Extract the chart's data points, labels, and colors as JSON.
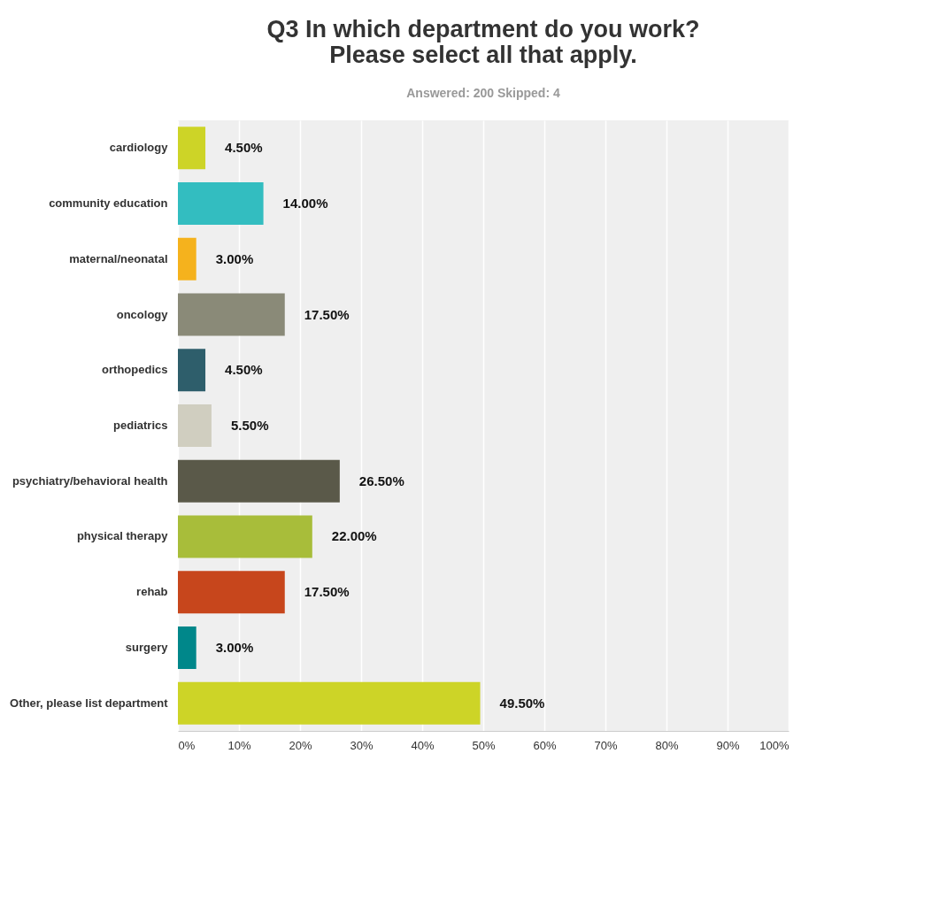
{
  "chart_data": {
    "type": "bar",
    "orientation": "horizontal",
    "title": "Q3 In which department do you work?\nPlease select all that apply.",
    "subtitle": "Answered: 200    Skipped: 4",
    "categories": [
      "cardiology",
      "community education",
      "maternal/neonatal",
      "oncology",
      "orthopedics",
      "pediatrics",
      "psychiatry/behavioral health",
      "physical therapy",
      "rehab",
      "surgery",
      "Other, please list department"
    ],
    "values": [
      4.5,
      14.0,
      3.0,
      17.5,
      4.5,
      5.5,
      26.5,
      22.0,
      17.5,
      3.0,
      49.5
    ],
    "colors": [
      "#cdd427",
      "#33bdc0",
      "#f5b21d",
      "#8a8a78",
      "#2e5e6b",
      "#d0cec0",
      "#5a5949",
      "#a8bd3a",
      "#c7461c",
      "#00878a",
      "#cdd427"
    ],
    "value_labels": [
      "4.50%",
      "14.00%",
      "3.00%",
      "17.50%",
      "4.50%",
      "5.50%",
      "26.50%",
      "22.00%",
      "17.50%",
      "3.00%",
      "49.50%"
    ],
    "xlim": [
      0,
      100
    ],
    "xticks": [
      {
        "value": 0,
        "label": "0%"
      },
      {
        "value": 10,
        "label": "10%"
      },
      {
        "value": 20,
        "label": "20%"
      },
      {
        "value": 30,
        "label": "30%"
      },
      {
        "value": 40,
        "label": "40%"
      },
      {
        "value": 50,
        "label": "50%"
      },
      {
        "value": 60,
        "label": "60%"
      },
      {
        "value": 70,
        "label": "70%"
      },
      {
        "value": 80,
        "label": "80%"
      },
      {
        "value": 90,
        "label": "90%"
      },
      {
        "value": 100,
        "label": "100%"
      }
    ],
    "grid": "x"
  }
}
